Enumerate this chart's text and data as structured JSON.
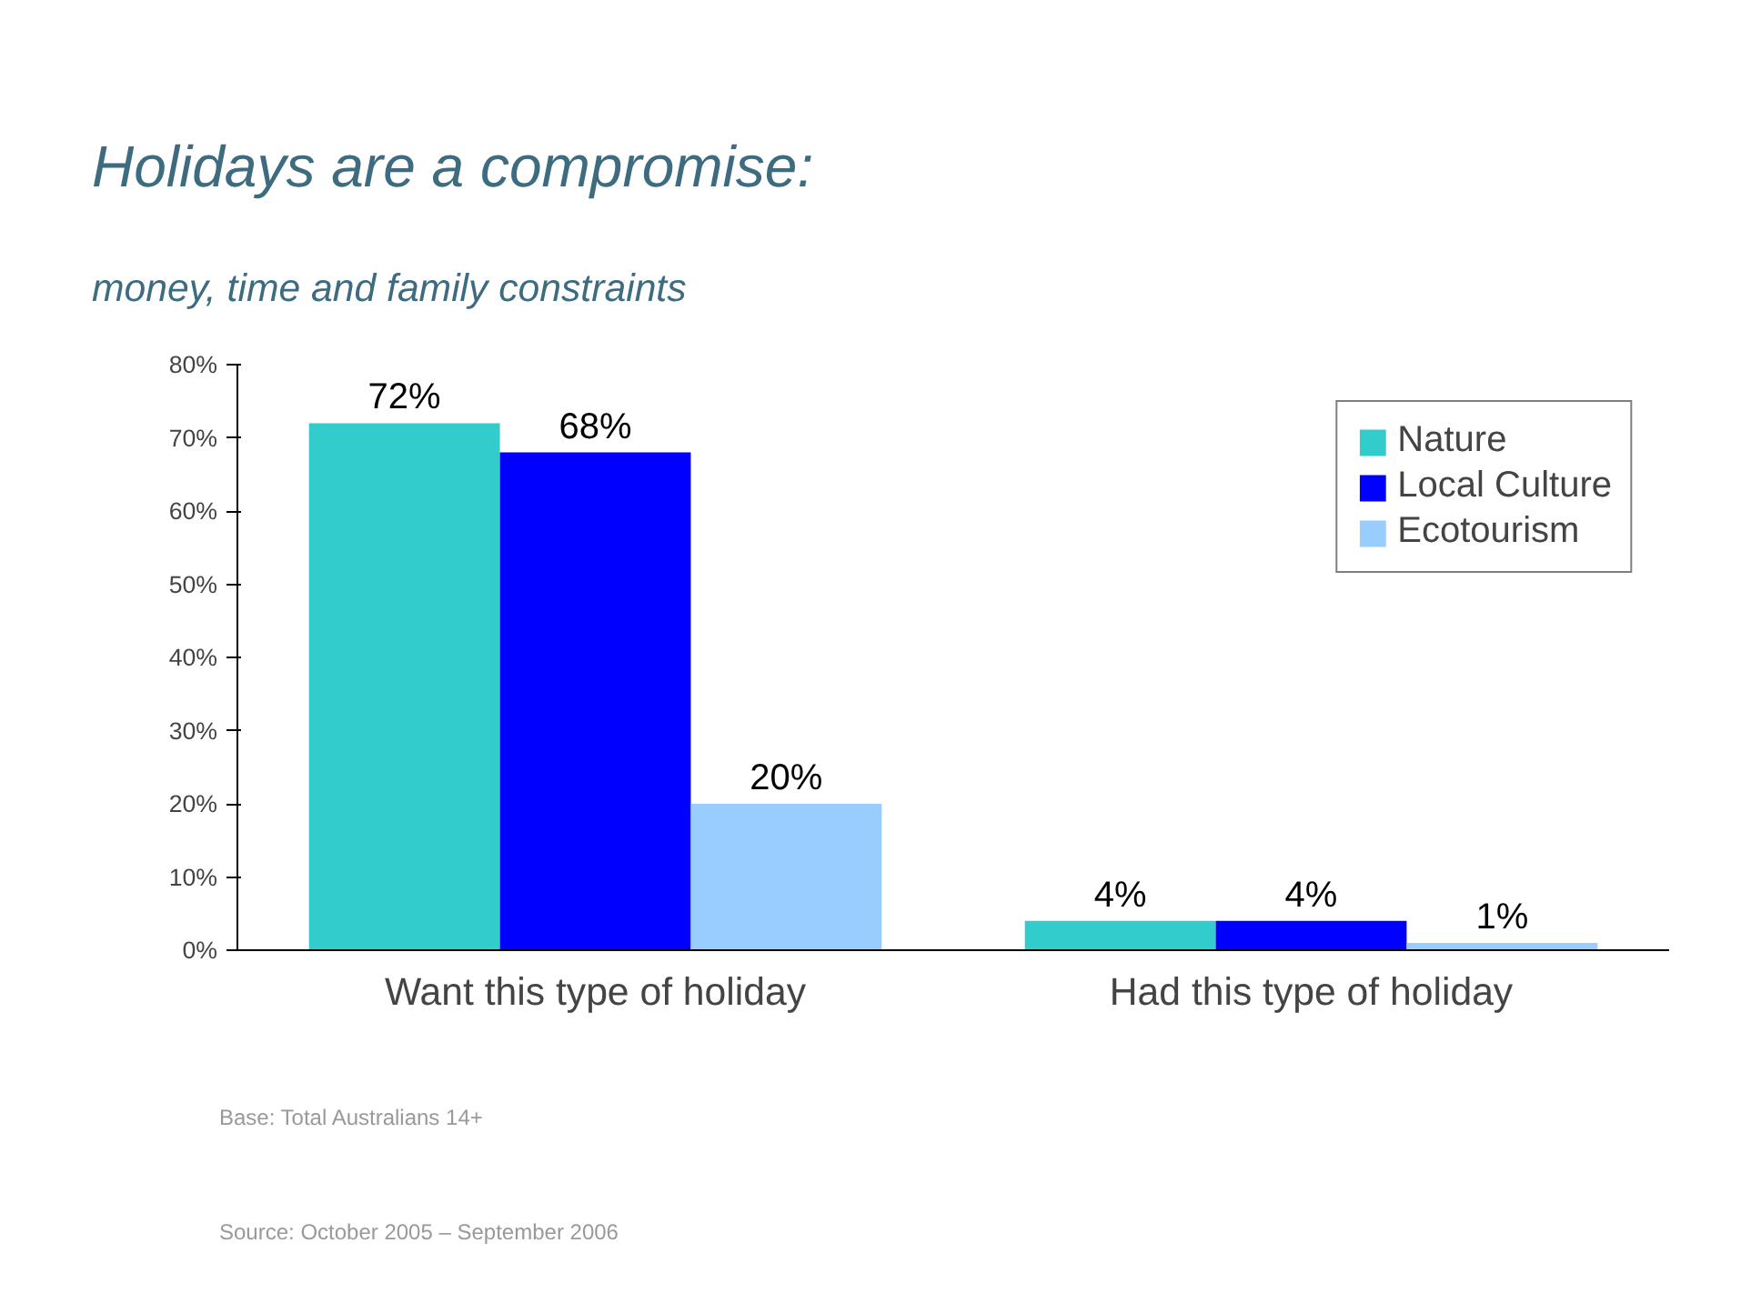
{
  "chart_data": {
    "type": "bar",
    "title": "Holidays are a compromise:",
    "subtitle": "money, time and family constraints",
    "categories": [
      "Want this type of holiday",
      "Had this type of holiday"
    ],
    "series": [
      {
        "name": "Nature",
        "color": "#33cccc",
        "values": [
          72,
          4
        ],
        "value_labels": [
          "72%",
          "4%"
        ]
      },
      {
        "name": "Local Culture",
        "color": "#0000ff",
        "values": [
          68,
          4
        ],
        "value_labels": [
          "68%",
          "4%"
        ]
      },
      {
        "name": "Ecotourism",
        "color": "#99ccff",
        "values": [
          20,
          1
        ],
        "value_labels": [
          "20%",
          "1%"
        ]
      }
    ],
    "ylim": [
      0,
      80
    ],
    "yticks": [
      {
        "value": 0,
        "label": "0%"
      },
      {
        "value": 10,
        "label": "10%"
      },
      {
        "value": 20,
        "label": "20%"
      },
      {
        "value": 30,
        "label": "30%"
      },
      {
        "value": 40,
        "label": "40%"
      },
      {
        "value": 50,
        "label": "50%"
      },
      {
        "value": 60,
        "label": "60%"
      },
      {
        "value": 70,
        "label": "70%"
      },
      {
        "value": 80,
        "label": "80%"
      }
    ],
    "grid": false,
    "legend": "top right",
    "annotations": [
      "Base: Total Australians 14+",
      "Source: October 2005 – September 2006"
    ]
  }
}
